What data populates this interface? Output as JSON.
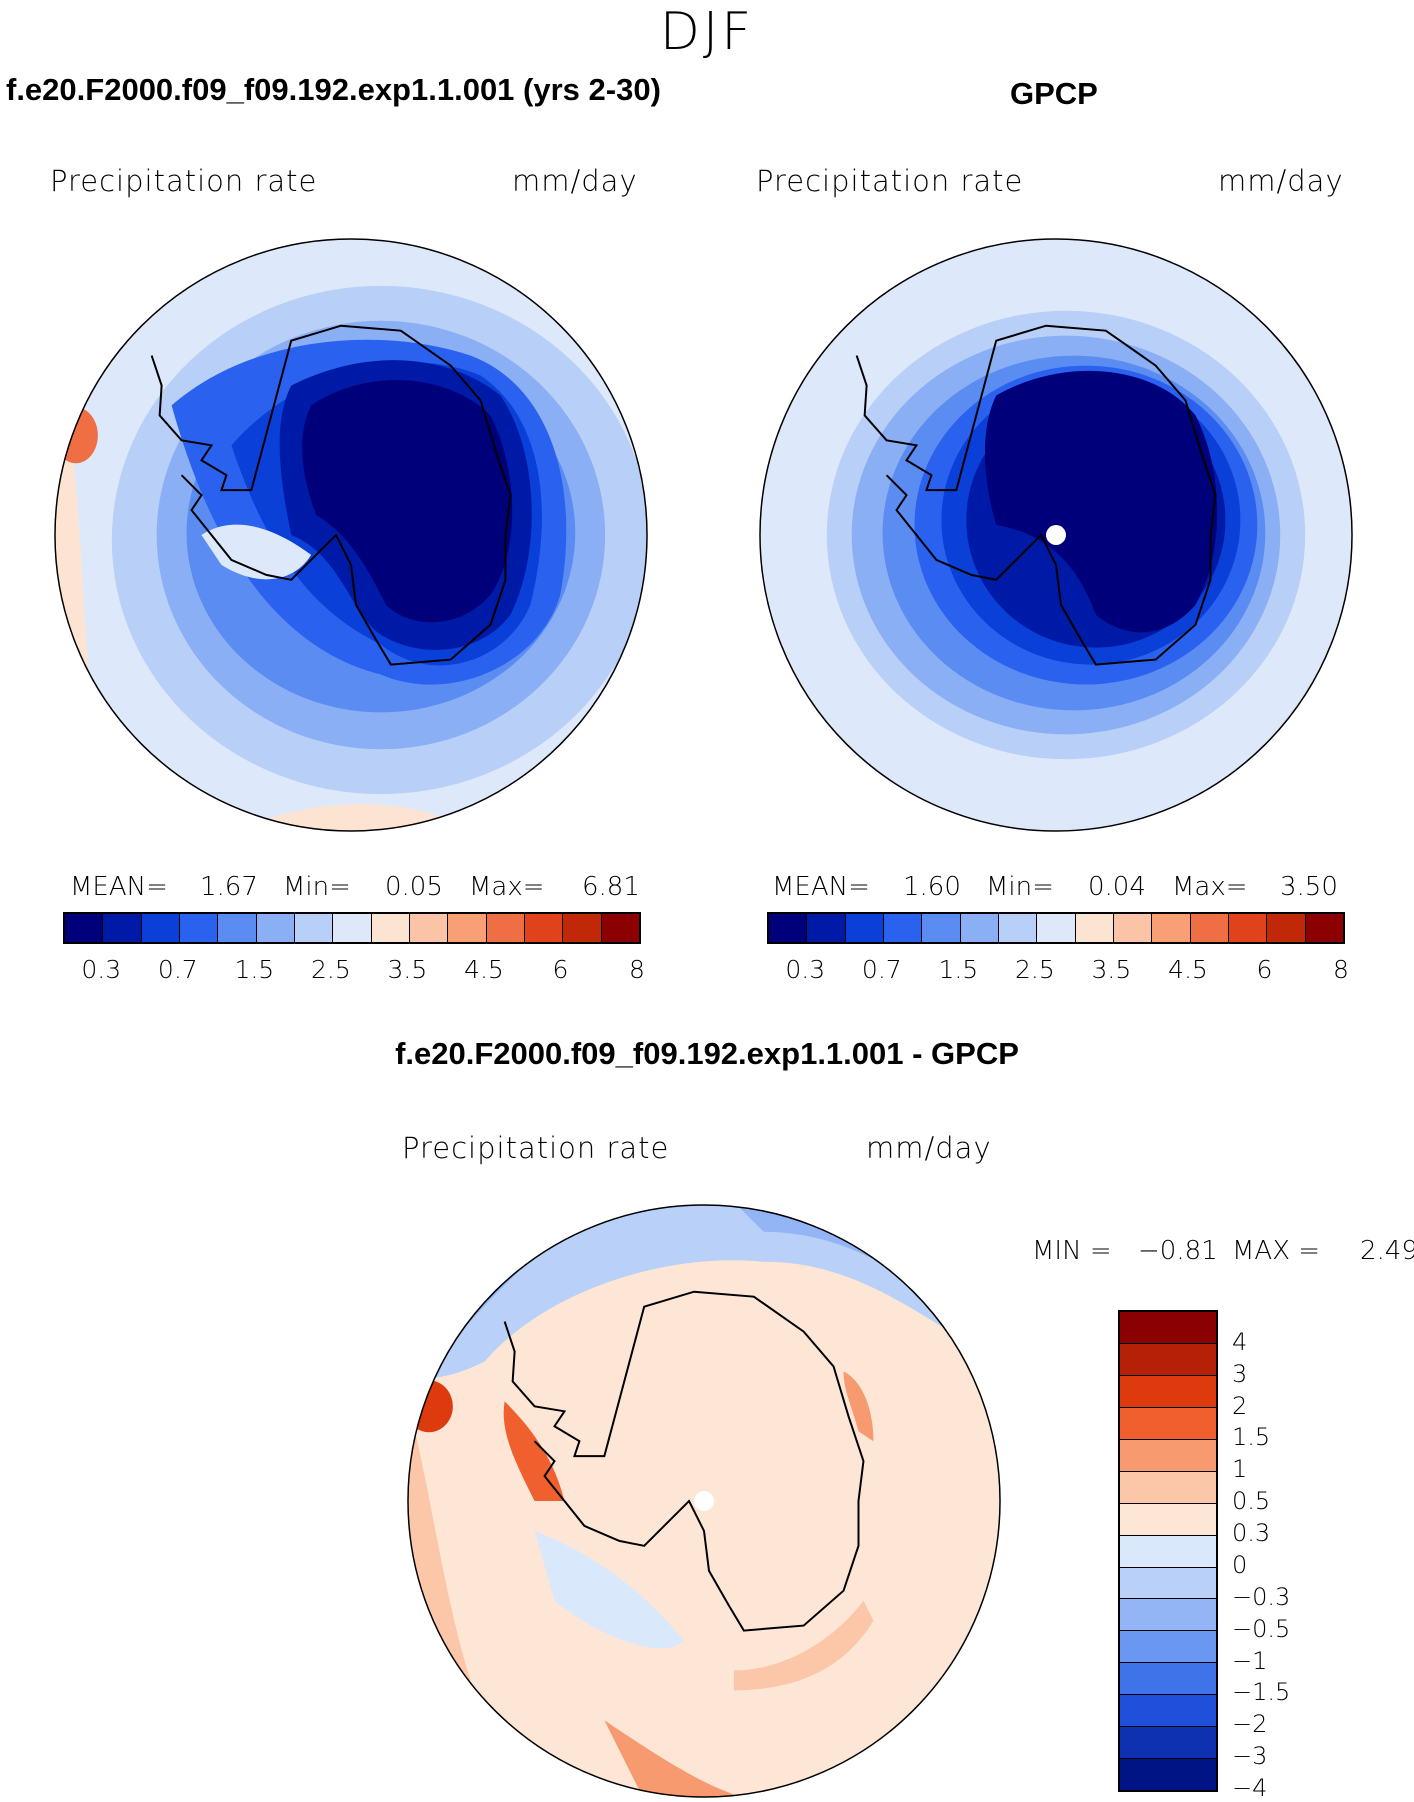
{
  "season": "DJF",
  "panels": [
    {
      "title": "f.e20.F2000.f09_f09.192.exp1.1.001 (yrs 2-30)",
      "variable": "Precipitation rate",
      "units": "mm/day",
      "stats": {
        "mean_label": "MEAN=",
        "mean": "1.67",
        "min_label": "Min=",
        "min": "0.05",
        "max_label": "Max=",
        "max": "6.81"
      }
    },
    {
      "title": "GPCP",
      "variable": "Precipitation rate",
      "units": "mm/day",
      "stats": {
        "mean_label": "MEAN=",
        "mean": "1.60",
        "min_label": "Min=",
        "min": "0.04",
        "max_label": "Max=",
        "max": "3.50"
      }
    }
  ],
  "diff_panel": {
    "title": "f.e20.F2000.f09_f09.192.exp1.1.001 - GPCP",
    "variable": "Precipitation rate",
    "units": "mm/day",
    "min_label": "MIN =",
    "min": "−0.81",
    "max_label": "MAX =",
    "max": "2.49"
  },
  "colorbar_abs": {
    "colors": [
      "#00007a",
      "#001aa8",
      "#0a3fd8",
      "#2a62ef",
      "#5a8cf2",
      "#8aaff5",
      "#b8cff8",
      "#dde9fb",
      "#fde4d2",
      "#fbc4a6",
      "#f89f76",
      "#f06e43",
      "#e0431c",
      "#c02808",
      "#8b0000"
    ],
    "tick_labels": [
      "0.3",
      "0.7",
      "1.5",
      "2.5",
      "3.5",
      "4.5",
      "6",
      "8"
    ]
  },
  "colorbar_diff": {
    "colors": [
      "#8b0000",
      "#b52107",
      "#dd3a0e",
      "#f0602e",
      "#f79a70",
      "#fbc7a8",
      "#fde6d6",
      "#dae8fb",
      "#b9d0f8",
      "#94b5f5",
      "#6a97f1",
      "#3f73ea",
      "#1f4fdb",
      "#0e31b2",
      "#001485"
    ],
    "tick_labels": [
      "4",
      "3",
      "2",
      "1.5",
      "1",
      "0.5",
      "0.3",
      "0",
      "−0.3",
      "−0.5",
      "−1",
      "−1.5",
      "−2",
      "−3",
      "−4"
    ]
  },
  "map_colors": {
    "abs_low": "#00007a",
    "abs_low2": "#001aa8",
    "abs_mid": "#0a3fd8",
    "abs_mid2": "#2a62ef",
    "abs_mid3": "#5a8cf2",
    "abs_mid4": "#8aaff5",
    "abs_hi": "#b8cff8",
    "abs_hi2": "#dde9fb",
    "abs_warm": "#fde4d2",
    "abs_warm2": "#f06e43",
    "coast": "#000000",
    "pole_marker": "#ffffff"
  }
}
